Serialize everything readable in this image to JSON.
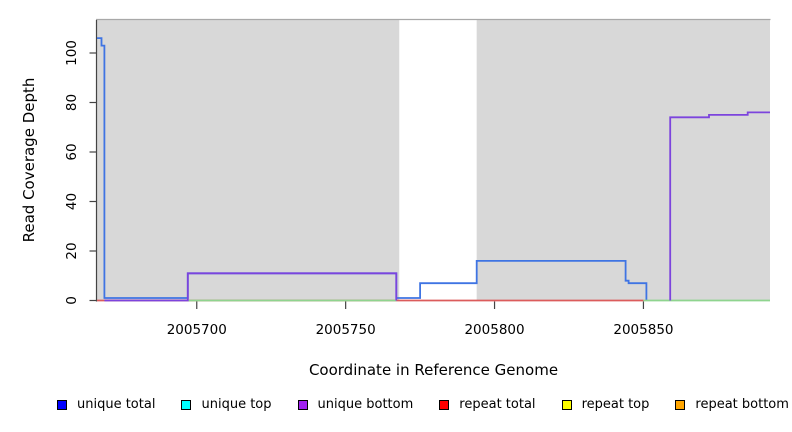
{
  "chart_data": {
    "type": "line",
    "step": true,
    "title": "",
    "xlabel": "Coordinate in Reference Genome",
    "ylabel": "Read Coverage Depth",
    "xlim": [
      2005666.5,
      2005892.5
    ],
    "ylim": [
      0,
      113
    ],
    "xticks": [
      2005700,
      2005750,
      2005800,
      2005850
    ],
    "yticks": [
      0,
      20,
      40,
      60,
      80,
      100
    ],
    "grid": false,
    "legend_position": "bottom",
    "shaded_band_color": "#d8d8d8",
    "shaded_bands": [
      [
        2005666.5,
        2005768
      ],
      [
        2005794,
        2005892.5
      ]
    ],
    "axis_color": "#444444",
    "box_top_color": "#a8a8a8",
    "series": [
      {
        "name": "unique total",
        "legend_color": "#0000FF",
        "line_color": "#3F74E3",
        "steps": [
          [
            2005666,
            106
          ],
          [
            2005668,
            103
          ],
          [
            2005669,
            1
          ],
          [
            2005697,
            11
          ],
          [
            2005767,
            1
          ],
          [
            2005775,
            7
          ],
          [
            2005794,
            16
          ],
          [
            2005844,
            8
          ],
          [
            2005845,
            7
          ],
          [
            2005851,
            0
          ]
        ]
      },
      {
        "name": "unique top",
        "legend_color": "#00FFFF",
        "line_color": "#00FFFF",
        "steps": [
          [
            2005666,
            0
          ]
        ]
      },
      {
        "name": "unique bottom",
        "legend_color": "#A020F0",
        "line_color": "#7C44DD",
        "steps": [
          [
            2005666,
            0
          ],
          [
            2005697,
            11
          ],
          [
            2005767,
            0
          ],
          [
            2005859,
            74
          ],
          [
            2005872,
            75
          ],
          [
            2005885,
            76
          ]
        ]
      },
      {
        "name": "repeat total",
        "legend_color": "#FF0000",
        "line_color": "#DB5C5C",
        "steps": [
          [
            2005666,
            0
          ]
        ]
      },
      {
        "name": "repeat top",
        "legend_color": "#FFFF00",
        "line_color": "#FFFF00",
        "steps": [
          [
            2005666,
            0
          ]
        ]
      },
      {
        "name": "repeat bottom",
        "legend_color": "#FFA500",
        "line_color": "#FFA500",
        "steps": [
          [
            2005666,
            0
          ]
        ]
      }
    ],
    "rendered_lines": [
      {
        "name": "repeat-total-zero-line",
        "color": "#DB5C5C",
        "points": [
          [
            2005666.5,
            0
          ],
          [
            2005850,
            0
          ]
        ]
      },
      {
        "name": "zero-overlap-line-a",
        "color": "#8FD48F",
        "points": [
          [
            2005697,
            0
          ],
          [
            2005767,
            0
          ]
        ]
      },
      {
        "name": "zero-overlap-line-b",
        "color": "#8FD48F",
        "points": [
          [
            2005850,
            0
          ],
          [
            2005892.5,
            0
          ]
        ]
      },
      {
        "name": "unique-total-line",
        "color": "#3F74E3",
        "points": [
          [
            2005666.5,
            106
          ],
          [
            2005668,
            106
          ],
          [
            2005668,
            103
          ],
          [
            2005669,
            103
          ],
          [
            2005669,
            1
          ],
          [
            2005697,
            1
          ],
          [
            2005697,
            11
          ],
          [
            2005767,
            11
          ],
          [
            2005767,
            1
          ],
          [
            2005775,
            1
          ],
          [
            2005775,
            7
          ],
          [
            2005794,
            7
          ],
          [
            2005794,
            16
          ],
          [
            2005844,
            16
          ],
          [
            2005844,
            8
          ],
          [
            2005845,
            8
          ],
          [
            2005845,
            7
          ],
          [
            2005851,
            7
          ],
          [
            2005851,
            0.3
          ]
        ]
      },
      {
        "name": "unique-bottom-line-a",
        "color": "#7C44DD",
        "points": [
          [
            2005669,
            0
          ],
          [
            2005697,
            0
          ],
          [
            2005697,
            11
          ],
          [
            2005767,
            11
          ],
          [
            2005767,
            0
          ]
        ]
      },
      {
        "name": "unique-bottom-line-b",
        "color": "#7C44DD",
        "points": [
          [
            2005859,
            0
          ],
          [
            2005859,
            74
          ],
          [
            2005872,
            74
          ],
          [
            2005872,
            75
          ],
          [
            2005885,
            75
          ],
          [
            2005885,
            76
          ],
          [
            2005892.5,
            76
          ]
        ]
      }
    ]
  },
  "legend": {
    "items": [
      {
        "label": "unique total",
        "color": "#0000FF"
      },
      {
        "label": "unique top",
        "color": "#00FFFF"
      },
      {
        "label": "unique bottom",
        "color": "#A020F0"
      },
      {
        "label": "repeat total",
        "color": "#FF0000"
      },
      {
        "label": "repeat top",
        "color": "#FFFF00"
      },
      {
        "label": "repeat bottom",
        "color": "#FFA500"
      }
    ]
  }
}
